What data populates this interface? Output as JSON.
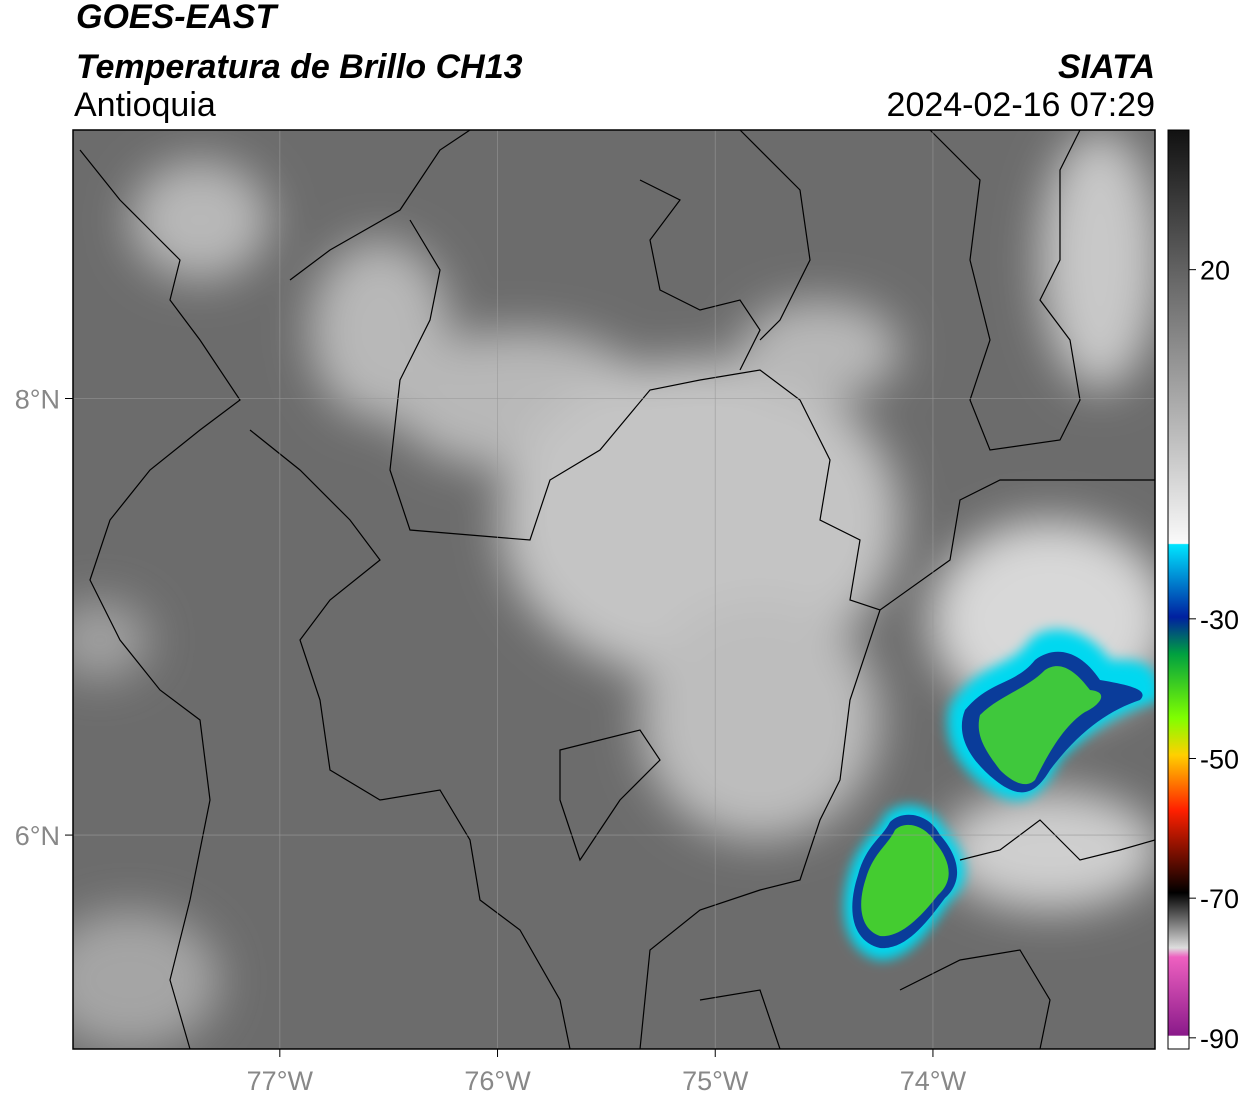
{
  "header": {
    "title": "GOES-EAST",
    "subtitle": "Temperatura de Brillo CH13",
    "region": "Antioquia",
    "source": "SIATA",
    "datetime": "2024-02-16 07:29"
  },
  "map": {
    "xlim": [
      -77.95,
      -72.98
    ],
    "ylim": [
      5.02,
      9.23
    ],
    "xticks": [
      {
        "value": -77,
        "label": "77°W"
      },
      {
        "value": -76,
        "label": "76°W"
      },
      {
        "value": -75,
        "label": "75°W"
      },
      {
        "value": -74,
        "label": "74°W"
      }
    ],
    "yticks": [
      {
        "value": 8,
        "label": "8°N"
      },
      {
        "value": 6,
        "label": "6°N"
      }
    ]
  },
  "colorbar": {
    "lim": [
      -91.6,
      40
    ],
    "ticks": [
      20,
      -30,
      -50,
      -70,
      -90
    ]
  }
}
